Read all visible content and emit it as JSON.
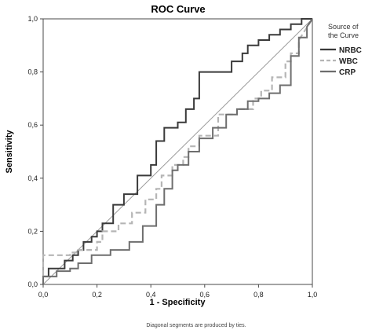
{
  "chart_data": {
    "type": "line",
    "title": "ROC Curve",
    "xlabel": "1 - Specificity",
    "ylabel": "Sensitivity",
    "xlim": [
      0,
      1
    ],
    "ylim": [
      0,
      1
    ],
    "x_ticks": [
      "0,0",
      "0,2",
      "0,4",
      "0,6",
      "0,8",
      "1,0"
    ],
    "y_ticks": [
      "0,0",
      "0,2",
      "0,4",
      "0,6",
      "0,8",
      "1,0"
    ],
    "legend_title": [
      "Source of",
      "the Curve"
    ],
    "legend_position": "right",
    "grid": false,
    "series": [
      {
        "name": "NRBC",
        "color": "#3a3a3a",
        "dash": "solid",
        "x": [
          0,
          0,
          0.02,
          0.02,
          0.08,
          0.08,
          0.11,
          0.11,
          0.13,
          0.13,
          0.15,
          0.15,
          0.18,
          0.18,
          0.2,
          0.2,
          0.22,
          0.22,
          0.26,
          0.26,
          0.3,
          0.3,
          0.35,
          0.35,
          0.4,
          0.4,
          0.42,
          0.42,
          0.45,
          0.45,
          0.5,
          0.5,
          0.53,
          0.53,
          0.56,
          0.56,
          0.58,
          0.58,
          0.7,
          0.7,
          0.74,
          0.74,
          0.76,
          0.76,
          0.8,
          0.8,
          0.84,
          0.84,
          0.88,
          0.88,
          0.92,
          0.92,
          0.96,
          0.96,
          1.0
        ],
        "y": [
          0,
          0.03,
          0.03,
          0.06,
          0.06,
          0.09,
          0.09,
          0.11,
          0.11,
          0.13,
          0.13,
          0.16,
          0.16,
          0.18,
          0.18,
          0.2,
          0.2,
          0.23,
          0.23,
          0.3,
          0.3,
          0.34,
          0.34,
          0.41,
          0.41,
          0.45,
          0.45,
          0.54,
          0.54,
          0.59,
          0.59,
          0.61,
          0.61,
          0.66,
          0.66,
          0.7,
          0.7,
          0.8,
          0.8,
          0.84,
          0.84,
          0.87,
          0.87,
          0.9,
          0.9,
          0.92,
          0.92,
          0.94,
          0.94,
          0.96,
          0.96,
          0.98,
          0.98,
          1.0,
          1.0
        ]
      },
      {
        "name": "WBC",
        "color": "#b5b5b5",
        "dash": "dashed",
        "x": [
          0,
          0,
          0.1,
          0.1,
          0.13,
          0.13,
          0.2,
          0.2,
          0.22,
          0.22,
          0.28,
          0.28,
          0.33,
          0.33,
          0.38,
          0.38,
          0.42,
          0.42,
          0.44,
          0.44,
          0.48,
          0.48,
          0.52,
          0.52,
          0.54,
          0.54,
          0.58,
          0.58,
          0.65,
          0.65,
          0.72,
          0.72,
          0.78,
          0.78,
          0.81,
          0.81,
          0.85,
          0.85,
          0.9,
          0.9,
          0.92,
          0.92,
          0.95,
          0.95,
          1.0
        ],
        "y": [
          0,
          0.11,
          0.11,
          0.12,
          0.12,
          0.13,
          0.13,
          0.16,
          0.16,
          0.2,
          0.2,
          0.23,
          0.23,
          0.27,
          0.27,
          0.32,
          0.32,
          0.36,
          0.36,
          0.41,
          0.41,
          0.45,
          0.45,
          0.48,
          0.48,
          0.52,
          0.52,
          0.56,
          0.56,
          0.64,
          0.64,
          0.66,
          0.66,
          0.7,
          0.7,
          0.73,
          0.73,
          0.78,
          0.78,
          0.84,
          0.84,
          0.87,
          0.87,
          0.92,
          1.0
        ]
      },
      {
        "name": "CRP",
        "color": "#6e6e6e",
        "dash": "solid",
        "x": [
          0,
          0,
          0.05,
          0.05,
          0.1,
          0.1,
          0.13,
          0.13,
          0.18,
          0.18,
          0.25,
          0.25,
          0.32,
          0.32,
          0.37,
          0.37,
          0.42,
          0.42,
          0.45,
          0.45,
          0.48,
          0.48,
          0.5,
          0.5,
          0.54,
          0.54,
          0.58,
          0.58,
          0.63,
          0.63,
          0.68,
          0.68,
          0.72,
          0.72,
          0.76,
          0.76,
          0.8,
          0.8,
          0.84,
          0.84,
          0.88,
          0.88,
          0.92,
          0.92,
          0.95,
          0.95,
          0.98,
          0.98,
          1.0
        ],
        "y": [
          0,
          0.03,
          0.03,
          0.05,
          0.05,
          0.06,
          0.06,
          0.08,
          0.08,
          0.11,
          0.11,
          0.13,
          0.13,
          0.16,
          0.16,
          0.22,
          0.22,
          0.3,
          0.3,
          0.36,
          0.36,
          0.43,
          0.43,
          0.45,
          0.45,
          0.5,
          0.5,
          0.55,
          0.55,
          0.59,
          0.59,
          0.64,
          0.64,
          0.66,
          0.66,
          0.69,
          0.69,
          0.7,
          0.7,
          0.72,
          0.72,
          0.75,
          0.75,
          0.86,
          0.86,
          0.93,
          0.93,
          0.97,
          1.0
        ]
      }
    ],
    "reference_line": true
  },
  "caption": "Diagonal segments are produced by ties."
}
